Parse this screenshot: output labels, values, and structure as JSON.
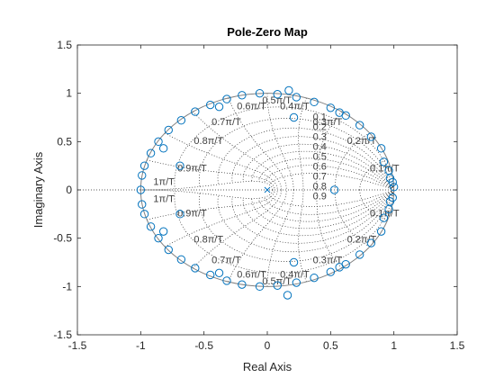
{
  "chart_data": {
    "type": "scatter",
    "title": "Pole-Zero Map",
    "xlabel": "Real Axis",
    "ylabel": "Imaginary Axis",
    "xlim": [
      -1.5,
      1.5
    ],
    "ylim": [
      -1.5,
      1.5
    ],
    "xticks": [
      "-1.5",
      "-1",
      "-0.5",
      "0",
      "0.5",
      "1",
      "1.5"
    ],
    "yticks": [
      "1.5",
      "1",
      "0.5",
      "0",
      "-0.5",
      "-1",
      "-1.5"
    ],
    "xtick_values": [
      -1.5,
      -1,
      -0.5,
      0,
      0.5,
      1,
      1.5
    ],
    "ytick_values": [
      1.5,
      1,
      0.5,
      0,
      -0.5,
      -1,
      -1.5
    ],
    "grid": "zgrid",
    "damping_values": [
      0.1,
      0.2,
      0.3,
      0.4,
      0.5,
      0.6,
      0.7,
      0.8,
      0.9
    ],
    "damping_labels": [
      "0.1",
      "0.2",
      "0.3",
      "0.4",
      "0.5",
      "0.6",
      "0.7",
      "0.8",
      "0.9"
    ],
    "frequency_labels": [
      {
        "text": "0.1π/T",
        "x": 0.81,
        "y": 0.22
      },
      {
        "text": "0.2π/T",
        "x": 0.63,
        "y": 0.5
      },
      {
        "text": "0.3π/T",
        "x": 0.36,
        "y": 0.7
      },
      {
        "text": "0.4π/T",
        "x": 0.1,
        "y": 0.86
      },
      {
        "text": "0.5π/T",
        "x": -0.04,
        "y": 0.92
      },
      {
        "text": "0.6π/T",
        "x": -0.24,
        "y": 0.86
      },
      {
        "text": "0.7π/T",
        "x": -0.44,
        "y": 0.7
      },
      {
        "text": "0.8π/T",
        "x": -0.58,
        "y": 0.5
      },
      {
        "text": "0.9π/T",
        "x": -0.71,
        "y": 0.22
      },
      {
        "text": "1π/T",
        "x": -0.9,
        "y": 0.08
      },
      {
        "text": "1π/T",
        "x": -0.9,
        "y": -0.1
      },
      {
        "text": "0.9π/T",
        "x": -0.71,
        "y": -0.25
      },
      {
        "text": "0.8π/T",
        "x": -0.58,
        "y": -0.52
      },
      {
        "text": "0.7π/T",
        "x": -0.44,
        "y": -0.73
      },
      {
        "text": "0.6π/T",
        "x": -0.24,
        "y": -0.88
      },
      {
        "text": "0.5π/T",
        "x": -0.04,
        "y": -0.95
      },
      {
        "text": "0.4π/T",
        "x": 0.1,
        "y": -0.88
      },
      {
        "text": "0.3π/T",
        "x": 0.36,
        "y": -0.73
      },
      {
        "text": "0.2π/T",
        "x": 0.63,
        "y": -0.52
      },
      {
        "text": "0.1π/T",
        "x": 0.81,
        "y": -0.25
      }
    ],
    "poles": [
      {
        "x": 0.0,
        "y": 0.0
      }
    ],
    "zeros": [
      {
        "x": 0.17,
        "y": 1.03
      },
      {
        "x": 0.16,
        "y": -1.09
      },
      {
        "x": 0.21,
        "y": 0.75
      },
      {
        "x": 0.21,
        "y": -0.75
      },
      {
        "x": 0.53,
        "y": 0.0
      },
      {
        "x": 1.0,
        "y": 0.03
      },
      {
        "x": 0.9,
        "y": 0.43
      },
      {
        "x": 0.9,
        "y": -0.43
      },
      {
        "x": -0.69,
        "y": 0.25
      },
      {
        "x": -0.69,
        "y": -0.25
      },
      {
        "x": -1.0,
        "y": 0.0
      },
      {
        "x": -0.99,
        "y": 0.15
      },
      {
        "x": -0.99,
        "y": -0.15
      },
      {
        "x": -0.97,
        "y": 0.25
      },
      {
        "x": -0.97,
        "y": -0.25
      },
      {
        "x": -0.92,
        "y": 0.38
      },
      {
        "x": -0.92,
        "y": -0.38
      },
      {
        "x": -0.86,
        "y": 0.5
      },
      {
        "x": -0.86,
        "y": -0.5
      },
      {
        "x": -0.78,
        "y": 0.62
      },
      {
        "x": -0.78,
        "y": -0.62
      },
      {
        "x": -0.68,
        "y": 0.72
      },
      {
        "x": -0.68,
        "y": -0.72
      },
      {
        "x": -0.57,
        "y": 0.81
      },
      {
        "x": -0.57,
        "y": -0.81
      },
      {
        "x": -0.45,
        "y": 0.88
      },
      {
        "x": -0.45,
        "y": -0.88
      },
      {
        "x": -0.32,
        "y": 0.94
      },
      {
        "x": -0.32,
        "y": -0.94
      },
      {
        "x": -0.2,
        "y": 0.98
      },
      {
        "x": -0.2,
        "y": -0.98
      },
      {
        "x": -0.06,
        "y": 1.0
      },
      {
        "x": -0.06,
        "y": -1.0
      },
      {
        "x": 0.08,
        "y": 0.99
      },
      {
        "x": 0.08,
        "y": -0.99
      },
      {
        "x": 0.23,
        "y": 0.96
      },
      {
        "x": 0.23,
        "y": -0.96
      },
      {
        "x": 0.37,
        "y": 0.91
      },
      {
        "x": 0.37,
        "y": -0.91
      },
      {
        "x": 0.5,
        "y": 0.85
      },
      {
        "x": 0.5,
        "y": -0.85
      },
      {
        "x": 0.62,
        "y": 0.77
      },
      {
        "x": 0.62,
        "y": -0.77
      },
      {
        "x": 0.73,
        "y": 0.67
      },
      {
        "x": 0.73,
        "y": -0.67
      },
      {
        "x": 0.82,
        "y": 0.55
      },
      {
        "x": 0.82,
        "y": -0.55
      },
      {
        "x": 0.92,
        "y": 0.29
      },
      {
        "x": 0.92,
        "y": -0.29
      },
      {
        "x": 0.96,
        "y": 0.2
      },
      {
        "x": 0.96,
        "y": -0.2
      },
      {
        "x": 0.99,
        "y": 0.08
      },
      {
        "x": 0.99,
        "y": -0.08
      },
      {
        "x": 0.97,
        "y": 0.12
      },
      {
        "x": 0.97,
        "y": -0.12
      },
      {
        "x": -0.82,
        "y": 0.43
      },
      {
        "x": -0.82,
        "y": -0.43
      },
      {
        "x": -0.38,
        "y": 0.86
      },
      {
        "x": -0.38,
        "y": -0.86
      },
      {
        "x": 0.57,
        "y": 0.8
      },
      {
        "x": 0.57,
        "y": -0.8
      }
    ],
    "colors": {
      "markers": "#0072BD",
      "axes": "#262626",
      "grid": "#262626",
      "unit_circle": "#808080"
    }
  }
}
